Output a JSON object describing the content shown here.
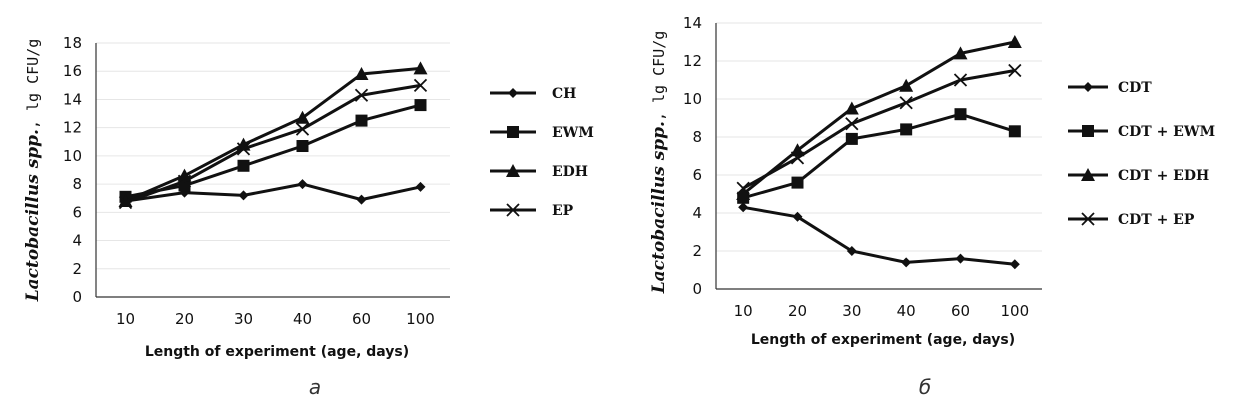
{
  "chart_data": [
    {
      "type": "line",
      "panel_label": "а",
      "categories": [
        "10",
        "20",
        "30",
        "40",
        "60",
        "100"
      ],
      "xlabel": "Length of experiment (age, days)",
      "ylabel_species": "Lactobacillus spp.",
      "ylabel_unit": ", lg CFU/g",
      "ylim": [
        0,
        18
      ],
      "yticks": [
        0,
        2,
        4,
        6,
        8,
        10,
        12,
        14,
        16,
        18
      ],
      "legend_position": "right",
      "series": [
        {
          "name": "CH",
          "marker": "diamond",
          "values": [
            6.8,
            7.4,
            7.2,
            8.0,
            6.9,
            7.8
          ]
        },
        {
          "name": "EWM",
          "marker": "square",
          "values": [
            7.1,
            7.9,
            9.3,
            10.7,
            12.5,
            13.6
          ]
        },
        {
          "name": "EDH",
          "marker": "triangle",
          "values": [
            6.8,
            8.6,
            10.8,
            12.7,
            15.8,
            16.2
          ]
        },
        {
          "name": "EP",
          "marker": "x",
          "values": [
            6.7,
            8.2,
            10.5,
            11.9,
            14.3,
            15.0
          ]
        }
      ]
    },
    {
      "type": "line",
      "panel_label": "б",
      "categories": [
        "10",
        "20",
        "30",
        "40",
        "60",
        "100"
      ],
      "xlabel": "Length of experiment (age, days)",
      "ylabel_species": "Lactobacillus spp.",
      "ylabel_unit": ", lg CFU/g",
      "ylim": [
        0,
        14
      ],
      "yticks": [
        0,
        2,
        4,
        6,
        8,
        10,
        12,
        14
      ],
      "legend_position": "right",
      "series": [
        {
          "name": "CDT",
          "marker": "diamond",
          "values": [
            4.3,
            3.8,
            2.0,
            1.4,
            1.6,
            1.3
          ]
        },
        {
          "name": "CDT + EWM",
          "marker": "square",
          "values": [
            4.8,
            5.6,
            7.9,
            8.4,
            9.2,
            8.3
          ]
        },
        {
          "name": "CDT + EDH",
          "marker": "triangle",
          "values": [
            5.0,
            7.3,
            9.5,
            10.7,
            12.4,
            13.0
          ]
        },
        {
          "name": "CDT + EP",
          "marker": "x",
          "values": [
            5.3,
            6.9,
            8.7,
            9.8,
            11.0,
            11.5
          ]
        }
      ]
    }
  ]
}
